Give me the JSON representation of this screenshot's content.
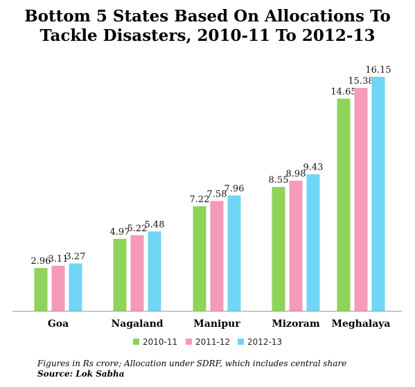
{
  "title_line1": "Bottom 5 States Based On Allocations To",
  "title_line2": "Tackle Disasters, 2010-11 To 2012-13",
  "footnote": "Figures in Rs crore; Allocation under SDRF, which includes central share",
  "source": "Source: Lok Sabha",
  "colors": {
    "2010-11": "#8ed35a",
    "2011-12": "#f79ab8",
    "2012-13": "#6fd6f5",
    "axis": "#9a9a9a"
  },
  "chart_data": {
    "type": "bar",
    "title": "Bottom 5 States Based On Allocations To Tackle Disasters, 2010-11 To 2012-13",
    "categories": [
      "Goa",
      "Nagaland",
      "Manipur",
      "Mizoram",
      "Meghalaya"
    ],
    "series": [
      {
        "name": "2010-11",
        "values": [
          2.96,
          4.97,
          7.22,
          8.55,
          14.65
        ]
      },
      {
        "name": "2011-12",
        "values": [
          3.11,
          5.22,
          7.58,
          8.98,
          15.38
        ]
      },
      {
        "name": "2012-13",
        "values": [
          3.27,
          5.48,
          7.96,
          9.43,
          16.15
        ]
      }
    ],
    "value_labels": [
      [
        "2.96",
        "4.97",
        "7.22",
        "8.55",
        "14.65"
      ],
      [
        "3.11",
        "5.22",
        "7.58",
        "8.98",
        "15.38"
      ],
      [
        "3.27",
        "5.48",
        "7.96",
        "9.43",
        "16.15"
      ]
    ],
    "ylim": [
      0,
      16.15
    ],
    "legend_position": "bottom",
    "grid": false
  }
}
